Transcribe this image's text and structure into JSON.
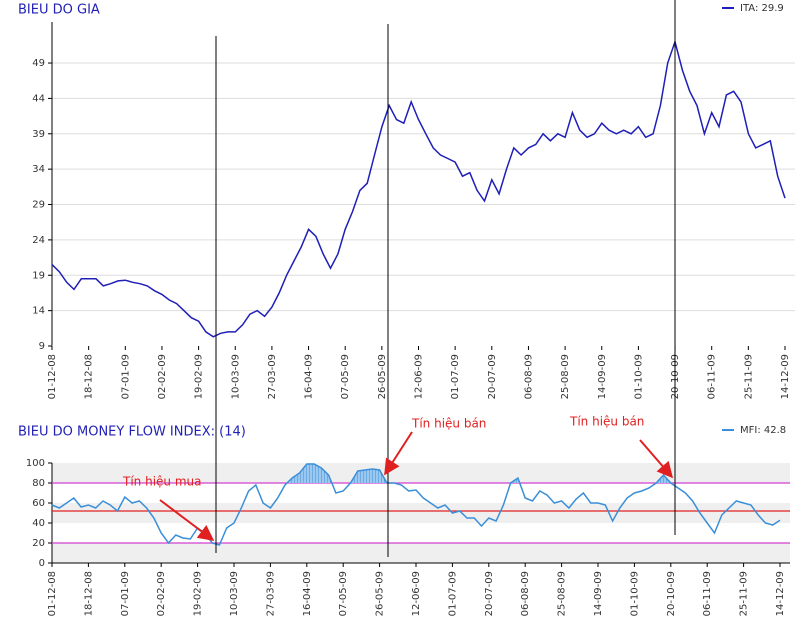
{
  "chart_data": [
    {
      "type": "line",
      "title": "BIEU DO GIA",
      "categories": [
        "01-12-08",
        null,
        null,
        null,
        null,
        "18-12-08",
        null,
        null,
        null,
        null,
        "07-01-09",
        null,
        null,
        null,
        null,
        "02-02-09",
        null,
        null,
        null,
        null,
        "19-02-09",
        null,
        null,
        null,
        null,
        "10-03-09",
        null,
        null,
        null,
        null,
        "27-03-09",
        null,
        null,
        null,
        null,
        "16-04-09",
        null,
        null,
        null,
        null,
        "07-05-09",
        null,
        null,
        null,
        null,
        "26-05-09",
        null,
        null,
        null,
        null,
        "12-06-09",
        null,
        null,
        null,
        null,
        "01-07-09",
        null,
        null,
        null,
        null,
        "20-07-09",
        null,
        null,
        null,
        null,
        "06-08-09",
        null,
        null,
        null,
        null,
        "25-08-09",
        null,
        null,
        null,
        null,
        "14-09-09",
        null,
        null,
        null,
        null,
        "01-10-09",
        null,
        null,
        null,
        null,
        "20-10-09",
        null,
        null,
        null,
        null,
        "06-11-09",
        null,
        null,
        null,
        null,
        "25-11-09",
        null,
        null,
        null,
        null,
        "14-12-09"
      ],
      "series": [
        {
          "name": "ITA: 29.9",
          "color": "#1f1fb8",
          "values": [
            20.5,
            19.5,
            18,
            17,
            18.5,
            18.5,
            18.5,
            17.5,
            17.8,
            18.2,
            18.3,
            18,
            17.8,
            17.5,
            16.8,
            16.3,
            15.5,
            15,
            14,
            13,
            12.5,
            11,
            10.3,
            10.8,
            11,
            11,
            12,
            13.5,
            14,
            13.2,
            14.5,
            16.5,
            19,
            21,
            23,
            25.5,
            24.5,
            22,
            20,
            22,
            25.5,
            28,
            31,
            32,
            36,
            40,
            43,
            41,
            40.5,
            43.5,
            41,
            39,
            37,
            36,
            35.5,
            35,
            33,
            33.5,
            31,
            29.5,
            32.5,
            30.5,
            34,
            37,
            36,
            37,
            37.5,
            39,
            38,
            39,
            38.5,
            42,
            39.5,
            38.5,
            39,
            40.5,
            39.5,
            39,
            39.5,
            39,
            40,
            38.5,
            39,
            43,
            49,
            52,
            48,
            45,
            43,
            39,
            42,
            40,
            44.5,
            45,
            43.5,
            39,
            37,
            37.5,
            38,
            33,
            29.9
          ]
        }
      ],
      "ylim": [
        9,
        54.8
      ],
      "yticks": [
        9,
        14,
        19,
        24,
        29,
        34,
        39,
        44,
        49
      ],
      "grid": true
    },
    {
      "type": "line",
      "title": "BIEU DO MONEY FLOW INDEX: (14)",
      "categories": [
        "01-12-08",
        null,
        null,
        null,
        null,
        "18-12-08",
        null,
        null,
        null,
        null,
        "07-01-09",
        null,
        null,
        null,
        null,
        "02-02-09",
        null,
        null,
        null,
        null,
        "19-02-09",
        null,
        null,
        null,
        null,
        "10-03-09",
        null,
        null,
        null,
        null,
        "27-03-09",
        null,
        null,
        null,
        null,
        "16-04-09",
        null,
        null,
        null,
        null,
        "07-05-09",
        null,
        null,
        null,
        null,
        "26-05-09",
        null,
        null,
        null,
        null,
        "12-06-09",
        null,
        null,
        null,
        null,
        "01-07-09",
        null,
        null,
        null,
        null,
        "20-07-09",
        null,
        null,
        null,
        null,
        "06-08-09",
        null,
        null,
        null,
        null,
        "25-08-09",
        null,
        null,
        null,
        null,
        "14-09-09",
        null,
        null,
        null,
        null,
        "01-10-09",
        null,
        null,
        null,
        null,
        "20-10-09",
        null,
        null,
        null,
        null,
        "06-11-09",
        null,
        null,
        null,
        null,
        "25-11-09",
        null,
        null,
        null,
        null,
        "14-12-09"
      ],
      "series": [
        {
          "name": "MFI: 42.8",
          "color": "#3a8fd8",
          "values": [
            58,
            55,
            60,
            65,
            56,
            58,
            55,
            62,
            58,
            52,
            66,
            60,
            62,
            55,
            45,
            30,
            20,
            28,
            25,
            24,
            35,
            30,
            20,
            18,
            35,
            40,
            55,
            72,
            78,
            60,
            55,
            65,
            78,
            85,
            90,
            99,
            99,
            95,
            88,
            70,
            72,
            80,
            92,
            93,
            94,
            93,
            80,
            80,
            78,
            72,
            73,
            65,
            60,
            55,
            58,
            50,
            52,
            45,
            45,
            37,
            45,
            42,
            58,
            80,
            85,
            65,
            62,
            72,
            68,
            60,
            62,
            55,
            64,
            70,
            60,
            60,
            58,
            42,
            55,
            65,
            70,
            72,
            75,
            80,
            88,
            80,
            75,
            70,
            62,
            50,
            40,
            30,
            48,
            55,
            62,
            60,
            58,
            48,
            40,
            38,
            42.8
          ]
        }
      ],
      "ylim": [
        0,
        100
      ],
      "yticks": [
        0,
        20,
        40,
        60,
        80,
        100
      ],
      "hlines": [
        {
          "value": 20,
          "color": "#d040d0"
        },
        {
          "value": 80,
          "color": "#d040d0"
        },
        {
          "value": 52,
          "color": "#e02020"
        }
      ],
      "fill_above": 80,
      "annotations": [
        "Tín hiệu mua",
        "Tín hiệu bán",
        "Tín hiệu bán"
      ]
    }
  ]
}
